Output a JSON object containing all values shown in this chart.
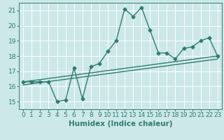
{
  "title": "",
  "xlabel": "Humidex (Indice chaleur)",
  "ylabel": "",
  "background_color": "#cce8e8",
  "grid_color": "#ffffff",
  "line_color": "#2e7d72",
  "xlim": [
    -0.5,
    23.5
  ],
  "ylim": [
    14.5,
    21.5
  ],
  "yticks": [
    15,
    16,
    17,
    18,
    19,
    20,
    21
  ],
  "xticks": [
    0,
    1,
    2,
    3,
    4,
    5,
    6,
    7,
    8,
    9,
    10,
    11,
    12,
    13,
    14,
    15,
    16,
    17,
    18,
    19,
    20,
    21,
    22,
    23
  ],
  "xtick_labels": [
    "0",
    "1",
    "2",
    "3",
    "4",
    "5",
    "6",
    "7",
    "8",
    "9",
    "10",
    "11",
    "12",
    "13",
    "14",
    "15",
    "16",
    "17",
    "18",
    "19",
    "20",
    "21",
    "22",
    "23"
  ],
  "series1_x": [
    0,
    1,
    2,
    3,
    4,
    5,
    6,
    7,
    8,
    9,
    10,
    11,
    12,
    13,
    14,
    15,
    16,
    17,
    18,
    19,
    20,
    21,
    22,
    23
  ],
  "series1_y": [
    16.3,
    16.3,
    16.3,
    16.3,
    15.0,
    15.1,
    17.2,
    15.2,
    17.3,
    17.5,
    18.3,
    19.0,
    21.1,
    20.6,
    21.2,
    19.7,
    18.2,
    18.2,
    17.8,
    18.5,
    18.6,
    19.0,
    19.2,
    18.0
  ],
  "series2_x": [
    0,
    23
  ],
  "series2_y": [
    16.3,
    18.0
  ],
  "series3_x": [
    0,
    23
  ],
  "series3_y": [
    16.1,
    17.8
  ],
  "marker": "D",
  "markersize": 2.5,
  "linewidth": 1.0,
  "tick_fontsize": 6.5,
  "xlabel_fontsize": 7.5
}
